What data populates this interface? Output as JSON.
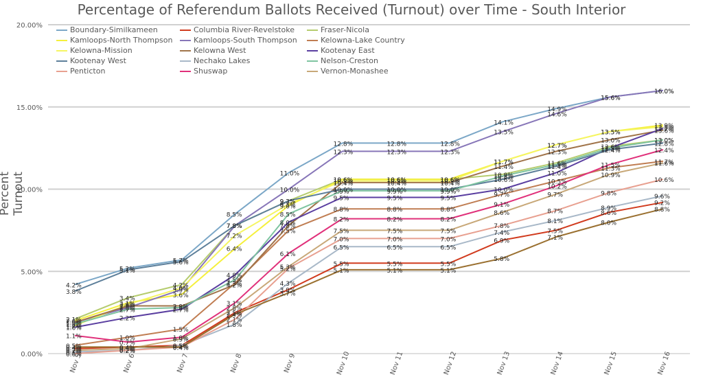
{
  "chart_data": {
    "type": "line",
    "title": "Percentage of Referendum Ballots Received (Turnout) over Time - South Interior",
    "ylabel": "Percent Turnout",
    "xlabel": "",
    "ylim": [
      0,
      20
    ],
    "yticks": [
      "0.00%",
      "5.00%",
      "10.00%",
      "15.00%",
      "20.00%"
    ],
    "categories": [
      "Nov 5",
      "Nov 6",
      "Nov 7",
      "Nov 8",
      "Nov 9",
      "Nov 10",
      "Nov 11",
      "Nov 12",
      "Nov 13",
      "Nov 14",
      "Nov 15",
      "Nov 16"
    ],
    "grid": "horizontal",
    "legend_position": "top-left",
    "series": [
      {
        "name": "Boundary-Similkameen",
        "color": "#7ba7c7",
        "values": [
          4.2,
          5.2,
          5.7,
          8.5,
          11.0,
          12.8,
          12.8,
          12.8,
          14.1,
          14.9,
          15.6,
          16.0
        ]
      },
      {
        "name": "Columbia River-Revelstoke",
        "color": "#d13b1e",
        "values": [
          0.3,
          0.4,
          0.5,
          2.5,
          3.9,
          5.5,
          5.5,
          5.5,
          6.9,
          7.5,
          8.6,
          9.2
        ]
      },
      {
        "name": "Fraser-Nicola",
        "color": "#b5cc6e",
        "values": [
          2.1,
          3.4,
          4.2,
          7.8,
          9.3,
          10.6,
          10.6,
          10.6,
          10.9,
          11.6,
          12.6,
          13.0
        ]
      },
      {
        "name": "Kamloops-North Thompson",
        "color": "#f5f03c",
        "values": [
          2.0,
          3.1,
          3.6,
          6.4,
          9.0,
          10.6,
          10.6,
          10.6,
          11.7,
          12.7,
          13.5,
          13.9
        ]
      },
      {
        "name": "Kamloops-South Thompson",
        "color": "#8776b8",
        "values": [
          1.9,
          2.8,
          3.9,
          7.8,
          10.0,
          12.3,
          12.3,
          12.3,
          13.5,
          14.6,
          15.6,
          16.0
        ]
      },
      {
        "name": "Kelowna-Lake Country",
        "color": "#c07d52",
        "values": [
          0.5,
          1.0,
          1.5,
          4.3,
          7.5,
          8.8,
          8.8,
          8.8,
          9.7,
          10.5,
          11.3,
          11.7
        ]
      },
      {
        "name": "Kelowna-Mission",
        "color": "#f5f562",
        "values": [
          1.7,
          3.0,
          4.0,
          7.2,
          9.1,
          10.5,
          10.5,
          10.5,
          11.7,
          12.7,
          13.5,
          13.8
        ]
      },
      {
        "name": "Kelowna West",
        "color": "#a0744a",
        "values": [
          1.9,
          2.9,
          2.9,
          4.2,
          7.8,
          10.4,
          10.4,
          10.4,
          11.4,
          12.3,
          13.0,
          13.6
        ]
      },
      {
        "name": "Kootenay East",
        "color": "#5a3ea0",
        "values": [
          1.6,
          2.2,
          2.7,
          4.8,
          8.0,
          9.5,
          9.5,
          9.5,
          10.0,
          11.0,
          12.5,
          13.7
        ]
      },
      {
        "name": "Kootenay West",
        "color": "#5d7f9a",
        "values": [
          3.8,
          5.1,
          5.6,
          7.8,
          9.3,
          10.0,
          10.0,
          10.0,
          10.6,
          11.4,
          12.4,
          12.8
        ]
      },
      {
        "name": "Nechako Lakes",
        "color": "#a8b8c8",
        "values": [
          0.1,
          0.2,
          0.5,
          1.8,
          4.3,
          6.5,
          6.5,
          6.5,
          7.4,
          8.1,
          8.9,
          9.6
        ]
      },
      {
        "name": "Nelson-Creston",
        "color": "#7ec4a0",
        "values": [
          1.8,
          2.7,
          2.8,
          4.5,
          8.5,
          9.9,
          9.9,
          9.9,
          10.8,
          11.5,
          12.5,
          13.0
        ]
      },
      {
        "name": "Penticton",
        "color": "#e8a090",
        "values": [
          0.0,
          0.2,
          0.4,
          2.1,
          5.2,
          7.0,
          7.0,
          7.0,
          7.8,
          8.7,
          9.8,
          10.6
        ]
      },
      {
        "name": "Shuswap",
        "color": "#e0307a",
        "values": [
          1.1,
          0.7,
          1.0,
          3.1,
          6.1,
          8.2,
          8.2,
          8.2,
          9.1,
          10.2,
          11.5,
          12.4
        ]
      },
      {
        "name": "Vernon-Monashee",
        "color": "#c8a878",
        "values": [
          0.2,
          0.3,
          0.9,
          2.8,
          5.3,
          7.5,
          7.5,
          7.5,
          8.6,
          9.7,
          10.9,
          11.6
        ]
      },
      {
        "name": "",
        "color": "#9a7030",
        "values": [
          0.4,
          0.4,
          0.4,
          2.4,
          3.7,
          5.1,
          5.1,
          5.1,
          5.8,
          7.1,
          8.0,
          8.8
        ]
      }
    ]
  }
}
